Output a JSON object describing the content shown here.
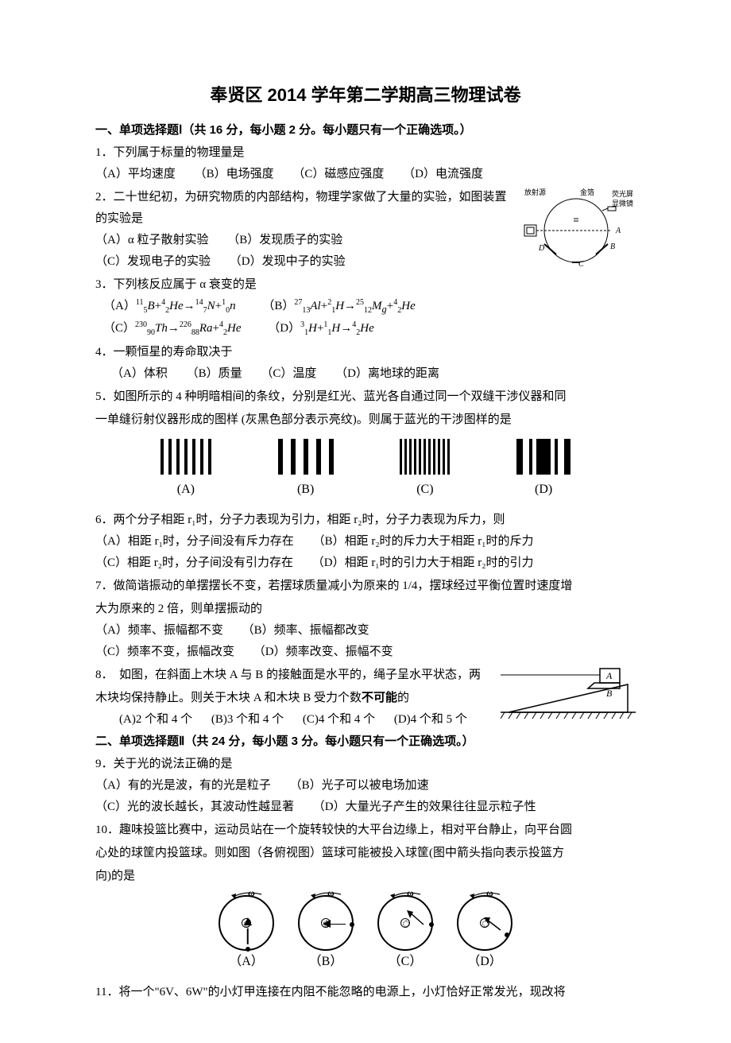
{
  "title": "奉贤区 2014 学年第二学期高三物理试卷",
  "section1_heading": "一、单项选择题Ⅰ（共 16 分，每小题 2 分。每小题只有一个正确选项。）",
  "q1": {
    "stem": "1．下列属于标量的物理量是",
    "a": "（A）平均速度",
    "b": "（B）电场强度",
    "c": "（C）磁感应强度",
    "d": "（D）电流强度"
  },
  "q2": {
    "stem": "2．二十世纪初，为研究物质的内部结构，物理学家做了大量的实验，如图装置的实验是",
    "a": "（A）α 粒子散射实验",
    "b": "（B）发现质子的实验",
    "c": "（C）发现电子的实验",
    "d": "（D）发现中子的实验",
    "labels": {
      "l1": "放射源",
      "l2": "金箔",
      "l3": "荧光屏",
      "l4": "显微镜",
      "a": "A",
      "b": "B",
      "c": "C",
      "d": "D"
    }
  },
  "q3": {
    "stem": "3．下列核反应属于 α 衰变的是"
  },
  "q4": {
    "stem": "4．一颗恒星的寿命取决于",
    "a": "（A）体积",
    "b": "（B）质量",
    "c": "（C）温度",
    "d": "（D）离地球的距离"
  },
  "q5": {
    "stem1": "5．如图所示的 4 种明暗相间的条纹，分别是红光、蓝光各自通过同一个双缝干涉仪器和同",
    "stem2": "一单缝衍射仪器形成的图样 (灰黑色部分表示亮纹)。则属于蓝光的干涉图样的是",
    "labelA": "(A)",
    "labelB": "(B)",
    "labelC": "(C)",
    "labelD": "(D)",
    "patterns": {
      "A": {
        "count": 7,
        "thin": 4,
        "gap": 6
      },
      "B": {
        "count": 5,
        "thin": 6,
        "gap": 10
      },
      "C": {
        "count": 11,
        "thin": 3,
        "gap": 3
      },
      "D": {
        "widths": [
          8,
          4,
          18,
          4,
          8
        ],
        "gaps": [
          8,
          5,
          5,
          8
        ]
      }
    }
  },
  "q6": {
    "stem": "6．两个分子相距 r₁时，分子力表现为引力，相距 r₂时，分子力表现为斥力，则",
    "a": "（A）相距 r₁时，分子间没有斥力存在",
    "b": "（B）相距 r₂时的斥力大于相距 r₁时的斥力",
    "c": "（C）相距 r₂时，分子间没有引力存在",
    "d": "（D）相距 r₁时的引力大于相距 r₂时的引力"
  },
  "q7": {
    "stem1": "7．做简谐振动的单摆摆长不变，若摆球质量减小为原来的 1/4，摆球经过平衡位置时速度增",
    "stem2": "大为原来的 2 倍，则单摆振动的",
    "a": "（A）频率、振幅都不变",
    "b": "（B）频率、振幅都改变",
    "c": "（C）频率不变，振幅改变",
    "d": "（D）频率改变、振幅不变"
  },
  "q8": {
    "stem1": "8．　如图，在斜面上木块 A 与 B 的接触面是水平的，绳子呈水平状态，两",
    "stem2": "木块均保持静止。则关于木块 A 和木块 B 受力个数",
    "bold": "不可能",
    "stem3": "的",
    "a": "(A)2 个和 4 个",
    "b": "(B)3 个和 4 个",
    "c": "(C)4 个和 4 个",
    "d": "(D)4 个和 5 个",
    "labelA": "A",
    "labelB": "B"
  },
  "section2_heading": "二、单项选择题Ⅱ（共 24 分，每小题 3 分。每小题只有一个正确选项。）",
  "q9": {
    "stem": "9．关于光的说法正确的是",
    "a": "（A）有的光是波，有的光是粒子",
    "b": "（B）光子可以被电场加速",
    "c": "（C）光的波长越长，其波动性越显著",
    "d": "（D）大量光子产生的效果往往显示粒子性"
  },
  "q10": {
    "stem1": "10．趣味投篮比赛中，运动员站在一个旋转较快的大平台边缘上，相对平台静止，向平台圆",
    "stem2": "心处的球筐内投篮球。则如图（各俯视图）篮球可能被投入球筐(图中箭头指向表示投篮方",
    "stem3": "向)的是",
    "labelA": "（A）",
    "labelB": "（B）",
    "labelC": "（C）",
    "labelD": "（D）",
    "omega": "ω"
  },
  "q11": {
    "stem": "11．将一个\"6V、6W\"的小灯甲连接在内阻不能忽略的电源上，小灯恰好正常发光，现改将"
  },
  "colors": {
    "text": "#000000",
    "background": "#ffffff"
  }
}
